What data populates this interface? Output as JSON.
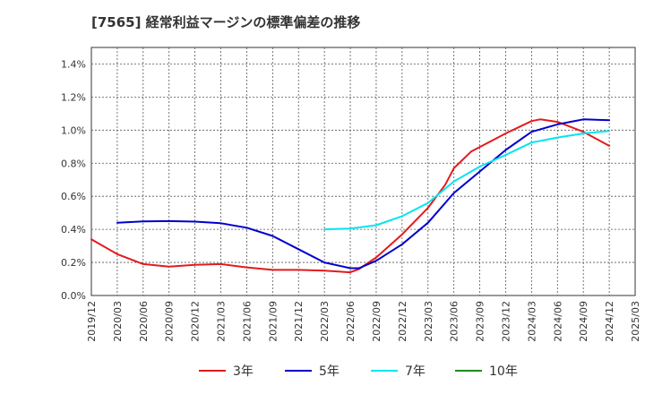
{
  "chart_data": {
    "type": "line",
    "title": "[7565]  経常利益マージンの標準偏差の推移",
    "xlabel": "",
    "ylabel": "",
    "x_ticks": [
      "2019/12",
      "2020/03",
      "2020/06",
      "2020/09",
      "2020/12",
      "2021/03",
      "2021/06",
      "2021/09",
      "2021/12",
      "2022/03",
      "2022/06",
      "2022/09",
      "2022/12",
      "2023/03",
      "2023/06",
      "2023/09",
      "2023/12",
      "2024/03",
      "2024/06",
      "2024/09",
      "2024/12",
      "2025/03"
    ],
    "y_ticks": [
      "0.0%",
      "0.2%",
      "0.4%",
      "0.6%",
      "0.8%",
      "1.0%",
      "1.2%",
      "1.4%"
    ],
    "ylim": [
      0,
      1.5
    ],
    "grid": true,
    "legend_position": "bottom",
    "series": [
      {
        "name": "3年",
        "color": "#e41a1c",
        "x": [
          "2019/12",
          "2020/03",
          "2020/06",
          "2020/09",
          "2020/12",
          "2021/03",
          "2021/06",
          "2021/09",
          "2021/12",
          "2022/03",
          "2022/06",
          "2022/07",
          "2022/09",
          "2022/12",
          "2023/03",
          "2023/05",
          "2023/06",
          "2023/08",
          "2023/12",
          "2024/03",
          "2024/04",
          "2024/06",
          "2024/09",
          "2024/12"
        ],
        "values": [
          0.34,
          0.25,
          0.19,
          0.175,
          0.185,
          0.19,
          0.17,
          0.155,
          0.155,
          0.15,
          0.14,
          0.16,
          0.23,
          0.37,
          0.53,
          0.67,
          0.77,
          0.87,
          0.98,
          1.055,
          1.065,
          1.05,
          0.99,
          0.905
        ]
      },
      {
        "name": "5年",
        "color": "#0000cc",
        "x": [
          "2020/03",
          "2020/06",
          "2020/09",
          "2020/12",
          "2021/03",
          "2021/06",
          "2021/09",
          "2021/12",
          "2022/03",
          "2022/06",
          "2022/07",
          "2022/09",
          "2022/12",
          "2023/03",
          "2023/06",
          "2023/09",
          "2023/12",
          "2024/03",
          "2024/06",
          "2024/09",
          "2024/12"
        ],
        "values": [
          0.44,
          0.448,
          0.45,
          0.447,
          0.437,
          0.41,
          0.36,
          0.28,
          0.2,
          0.165,
          0.165,
          0.21,
          0.31,
          0.44,
          0.62,
          0.75,
          0.88,
          0.99,
          1.035,
          1.065,
          1.06
        ]
      },
      {
        "name": "7年",
        "color": "#00e5ee",
        "x": [
          "2022/03",
          "2022/06",
          "2022/09",
          "2022/12",
          "2023/03",
          "2023/06",
          "2023/09",
          "2023/12",
          "2024/03",
          "2024/06",
          "2024/09",
          "2024/12"
        ],
        "values": [
          0.4,
          0.405,
          0.425,
          0.48,
          0.56,
          0.69,
          0.78,
          0.85,
          0.925,
          0.955,
          0.98,
          0.995
        ]
      },
      {
        "name": "10年",
        "color": "#228b22",
        "x": [],
        "values": []
      }
    ]
  }
}
